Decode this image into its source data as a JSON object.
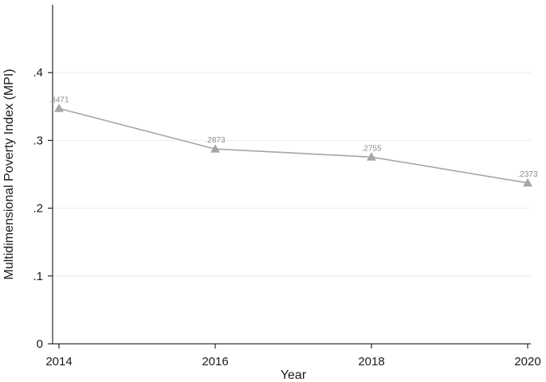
{
  "chart_data": {
    "type": "line",
    "x": [
      2014,
      2016,
      2018,
      2020
    ],
    "series": [
      {
        "values": [
          0.3471,
          0.2873,
          0.2755,
          0.2373
        ],
        "data_labels": [
          ".3471",
          ".2873",
          ".2755",
          ".2373"
        ],
        "marker": "triangle",
        "color": "#a6a6a6"
      }
    ],
    "xlabel": "Year",
    "ylabel": "Multidimensional Poverty Index (MPI)",
    "x_ticks": [
      "2014",
      "2016",
      "2018",
      "2020"
    ],
    "y_ticks": [
      {
        "value": 0,
        "label": "0"
      },
      {
        "value": 0.1,
        "label": ".1"
      },
      {
        "value": 0.2,
        "label": ".2"
      },
      {
        "value": 0.3,
        "label": ".3"
      },
      {
        "value": 0.4,
        "label": ".4"
      }
    ],
    "ylim": [
      0,
      0.5
    ],
    "xlim": [
      2014,
      2020
    ],
    "grid": true,
    "grid_color": "#e6eef2",
    "axis_color": "#000000"
  }
}
